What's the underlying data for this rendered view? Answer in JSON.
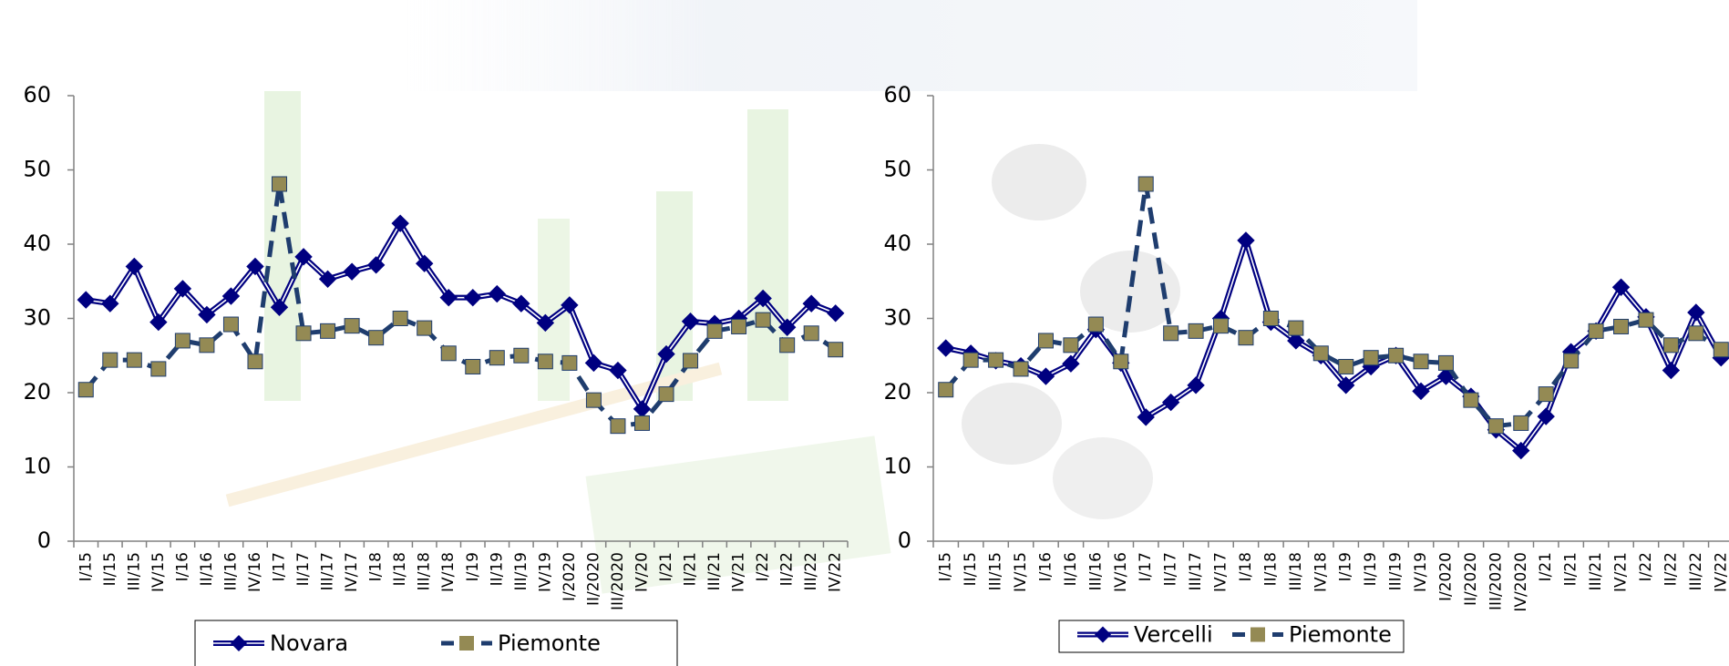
{
  "chart_data": [
    {
      "type": "line",
      "categories": [
        "I/15",
        "II/15",
        "III/15",
        "IV/15",
        "I/16",
        "II/16",
        "III/16",
        "IV/16",
        "I/17",
        "II/17",
        "III/17",
        "IV/17",
        "I/18",
        "II/18",
        "III/18",
        "IV/18",
        "I/19",
        "II/19",
        "III/19",
        "IV/19",
        "I/2020",
        "II/2020",
        "III/2020",
        "IV/20",
        "I/21",
        "II/21",
        "III/21",
        "IV/21",
        "I/22",
        "II/22",
        "III/22",
        "IV/22"
      ],
      "series": [
        {
          "name": "Novara",
          "color": "#000080",
          "marker": "diamond",
          "marker_color": "#000080",
          "dashed": false,
          "values": [
            32.5,
            32,
            37,
            29.5,
            34,
            30.5,
            33,
            37,
            31.5,
            38.3,
            35.3,
            36.3,
            37.2,
            42.8,
            37.4,
            32.8,
            32.8,
            33.3,
            32,
            29.4,
            31.8,
            24,
            23,
            17.8,
            25.2,
            29.6,
            29.3,
            30,
            32.7,
            28.8,
            32,
            30.7
          ]
        },
        {
          "name": "Piemonte",
          "color": "#1f3d6e",
          "marker": "square",
          "marker_color": "#948a54",
          "dashed": true,
          "values": [
            20.4,
            24.4,
            24.4,
            23.2,
            27,
            26.4,
            29.2,
            24.2,
            48.1,
            28,
            28.3,
            29,
            27.4,
            30,
            28.7,
            25.3,
            23.5,
            24.7,
            25,
            24.2,
            24,
            19,
            15.5,
            15.9,
            19.8,
            24.3,
            28.3,
            28.9,
            29.8,
            26.4,
            28,
            25.8
          ]
        }
      ],
      "ylim": [
        0,
        60
      ],
      "yticks": [
        0,
        10,
        20,
        30,
        40,
        50,
        60
      ],
      "grid": false,
      "legend": "bottom"
    },
    {
      "type": "line",
      "categories": [
        "I/15",
        "II/15",
        "III/15",
        "IV/15",
        "I/16",
        "II/16",
        "III/16",
        "IV/16",
        "I/17",
        "II/17",
        "III/17",
        "IV/17",
        "I/18",
        "II/18",
        "III/18",
        "IV/18",
        "I/19",
        "II/19",
        "III/19",
        "IV/19",
        "I/2020",
        "II/2020",
        "III/2020",
        "IV/2020",
        "I/21",
        "II/21",
        "III/21",
        "IV/21",
        "I/22",
        "II/22",
        "III/22",
        "IV/22"
      ],
      "series": [
        {
          "name": "Vercelli",
          "color": "#000080",
          "marker": "diamond",
          "marker_color": "#000080",
          "dashed": false,
          "values": [
            26,
            25.3,
            24.3,
            23.6,
            22.2,
            23.9,
            28.5,
            24,
            16.7,
            18.7,
            21,
            30,
            40.5,
            29.5,
            27,
            25,
            21,
            23.5,
            25,
            20.2,
            22.2,
            19.5,
            15,
            12.2,
            16.8,
            25.5,
            28.3,
            34.2,
            30.2,
            23,
            30.8,
            24.7
          ]
        },
        {
          "name": "Piemonte",
          "color": "#1f3d6e",
          "marker": "square",
          "marker_color": "#948a54",
          "dashed": true,
          "values": [
            20.4,
            24.4,
            24.4,
            23.2,
            27,
            26.4,
            29.2,
            24.2,
            48.1,
            28,
            28.3,
            29,
            27.4,
            30,
            28.7,
            25.3,
            23.5,
            24.7,
            25,
            24.2,
            24,
            19,
            15.5,
            15.9,
            19.8,
            24.3,
            28.3,
            28.9,
            29.8,
            26.4,
            28,
            25.8
          ]
        }
      ],
      "ylim": [
        0,
        60
      ],
      "yticks": [
        0,
        10,
        20,
        30,
        40,
        50,
        60
      ],
      "grid": false,
      "legend": "bottom"
    }
  ]
}
